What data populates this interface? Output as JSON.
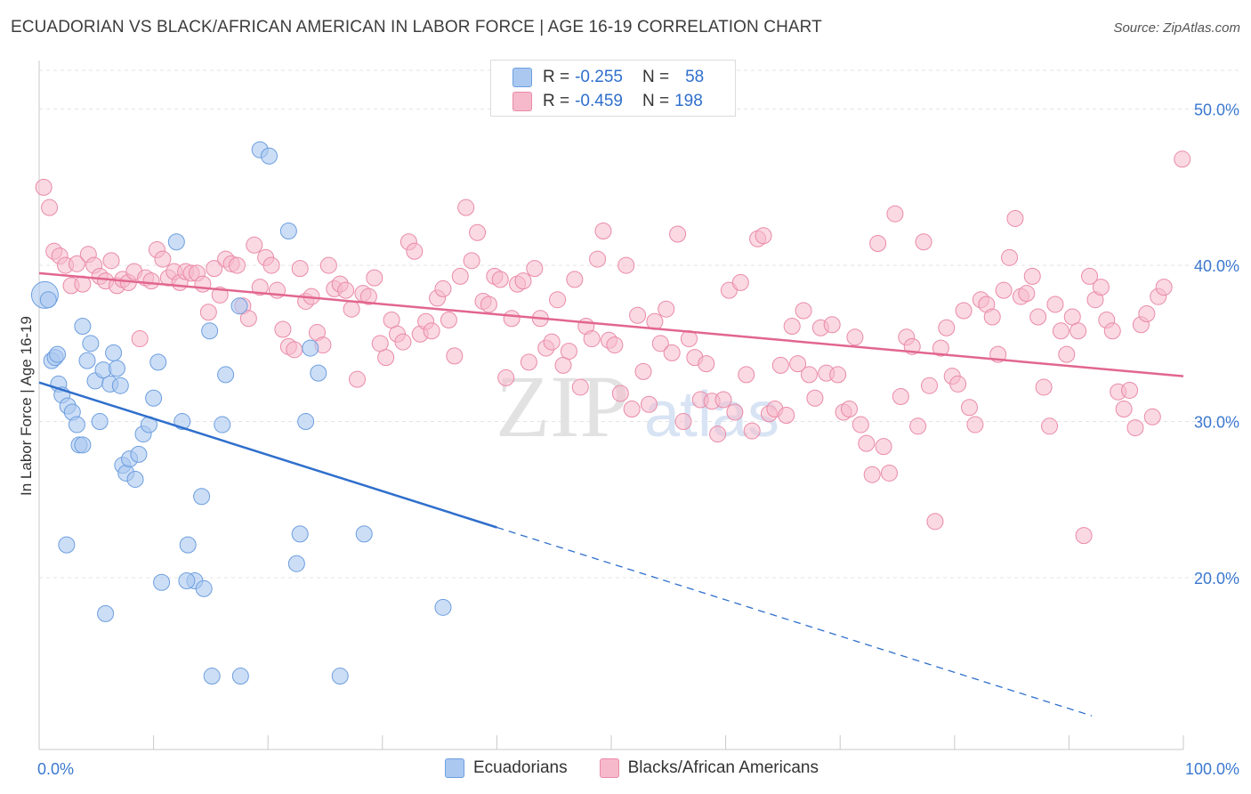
{
  "title": "ECUADORIAN VS BLACK/AFRICAN AMERICAN IN LABOR FORCE | AGE 16-19 CORRELATION CHART",
  "source": "Source: ZipAtlas.com",
  "watermark": {
    "zip": "ZIP",
    "atlas": "atlas"
  },
  "legend": {
    "ecuadorians": {
      "r_label": "R =",
      "r_value": "-0.255",
      "n_label": "N =",
      "n_value": "58"
    },
    "blacks": {
      "r_label": "R =",
      "r_value": "-0.459",
      "n_label": "N =",
      "n_value": "198"
    }
  },
  "bottom_legend": {
    "ecuadorians": "Ecuadorians",
    "blacks": "Blacks/African Americans"
  },
  "colors": {
    "blue_fill": "#aac8f0",
    "blue_stroke": "#6c9edf",
    "blue_line": "#2f6fcc",
    "pink_fill": "#f6b9cc",
    "pink_stroke": "#ea8aa8",
    "pink_line": "#e2668f",
    "tick_label": "#3b78cf",
    "grid": "#e3e3e3"
  },
  "chart_data": {
    "type": "scatter",
    "title": "ECUADORIAN VS BLACK/AFRICAN AMERICAN IN LABOR FORCE | AGE 16-19 CORRELATION CHART",
    "xlabel": "",
    "ylabel": "In Labor Force | Age 16-19",
    "xlim": [
      0,
      100
    ],
    "ylim": [
      9,
      53
    ],
    "x_tick_labels": [
      "0.0%",
      "100.0%"
    ],
    "y_ticks": [
      20,
      30,
      40,
      50
    ],
    "y_tick_labels": [
      "20.0%",
      "30.0%",
      "40.0%",
      "50.0%"
    ],
    "grid": true,
    "series": [
      {
        "name": "Ecuadorians",
        "color": "blue",
        "regression": {
          "x0": 0,
          "y0": 32.5,
          "x1": 100,
          "y1": 9.3,
          "solid_until_x": 40
        },
        "points": [
          [
            0.5,
            38.1
          ],
          [
            0.8,
            37.8
          ],
          [
            1.1,
            33.9
          ],
          [
            1.4,
            34.1
          ],
          [
            1.6,
            34.3
          ],
          [
            1.7,
            32.4
          ],
          [
            2.0,
            31.7
          ],
          [
            2.5,
            31.0
          ],
          [
            2.9,
            30.6
          ],
          [
            3.3,
            29.8
          ],
          [
            3.5,
            28.5
          ],
          [
            3.8,
            28.5
          ],
          [
            2.4,
            22.1
          ],
          [
            3.8,
            36.1
          ],
          [
            4.2,
            33.9
          ],
          [
            4.5,
            35.0
          ],
          [
            4.9,
            32.6
          ],
          [
            5.3,
            30.0
          ],
          [
            5.6,
            33.3
          ],
          [
            6.2,
            32.4
          ],
          [
            6.5,
            34.4
          ],
          [
            6.8,
            33.4
          ],
          [
            7.1,
            32.3
          ],
          [
            7.3,
            27.2
          ],
          [
            7.6,
            26.7
          ],
          [
            7.9,
            27.6
          ],
          [
            8.4,
            26.3
          ],
          [
            8.7,
            27.9
          ],
          [
            9.1,
            29.2
          ],
          [
            9.6,
            29.8
          ],
          [
            10.0,
            31.5
          ],
          [
            10.4,
            33.8
          ],
          [
            12.0,
            41.5
          ],
          [
            12.5,
            30.0
          ],
          [
            13.0,
            22.1
          ],
          [
            14.2,
            25.2
          ],
          [
            13.6,
            19.8
          ],
          [
            15.1,
            13.7
          ],
          [
            14.9,
            35.8
          ],
          [
            16.0,
            29.8
          ],
          [
            16.3,
            33.0
          ],
          [
            17.5,
            37.4
          ],
          [
            19.3,
            47.4
          ],
          [
            20.1,
            47.0
          ],
          [
            21.8,
            42.2
          ],
          [
            22.5,
            20.9
          ],
          [
            22.8,
            22.8
          ],
          [
            23.3,
            30.0
          ],
          [
            23.7,
            34.7
          ],
          [
            24.4,
            33.1
          ],
          [
            28.4,
            22.8
          ],
          [
            5.8,
            17.7
          ],
          [
            10.7,
            19.7
          ],
          [
            12.9,
            19.8
          ],
          [
            14.4,
            19.3
          ],
          [
            17.6,
            13.7
          ],
          [
            26.3,
            13.7
          ],
          [
            35.3,
            18.1
          ]
        ]
      },
      {
        "name": "Blacks/African Americans",
        "color": "pink",
        "regression": {
          "x0": 0,
          "y0": 39.5,
          "x1": 100,
          "y1": 32.9
        },
        "points": [
          [
            0.4,
            45.0
          ],
          [
            0.9,
            43.7
          ],
          [
            1.3,
            40.9
          ],
          [
            1.8,
            40.6
          ],
          [
            2.3,
            40.0
          ],
          [
            2.8,
            38.7
          ],
          [
            3.3,
            40.1
          ],
          [
            3.8,
            38.8
          ],
          [
            4.3,
            40.7
          ],
          [
            4.8,
            40.0
          ],
          [
            5.3,
            39.3
          ],
          [
            5.8,
            39.0
          ],
          [
            6.3,
            40.3
          ],
          [
            6.8,
            38.7
          ],
          [
            7.3,
            39.1
          ],
          [
            7.8,
            38.9
          ],
          [
            8.3,
            39.6
          ],
          [
            8.8,
            35.3
          ],
          [
            9.3,
            39.2
          ],
          [
            9.8,
            39.0
          ],
          [
            10.3,
            41.0
          ],
          [
            10.8,
            40.4
          ],
          [
            11.3,
            39.2
          ],
          [
            11.8,
            39.6
          ],
          [
            12.3,
            38.9
          ],
          [
            12.8,
            39.6
          ],
          [
            13.3,
            39.5
          ],
          [
            13.8,
            39.5
          ],
          [
            14.3,
            38.8
          ],
          [
            14.8,
            37.0
          ],
          [
            15.3,
            39.8
          ],
          [
            15.8,
            38.1
          ],
          [
            16.3,
            40.4
          ],
          [
            16.8,
            40.1
          ],
          [
            17.3,
            40.0
          ],
          [
            17.8,
            37.4
          ],
          [
            18.3,
            36.6
          ],
          [
            18.8,
            41.3
          ],
          [
            19.3,
            38.6
          ],
          [
            19.8,
            40.5
          ],
          [
            20.3,
            40.0
          ],
          [
            20.8,
            38.4
          ],
          [
            21.3,
            35.9
          ],
          [
            21.8,
            34.8
          ],
          [
            22.3,
            34.6
          ],
          [
            22.8,
            39.8
          ],
          [
            23.3,
            37.7
          ],
          [
            23.8,
            38.0
          ],
          [
            24.3,
            35.7
          ],
          [
            24.8,
            34.9
          ],
          [
            25.3,
            40.0
          ],
          [
            25.8,
            38.5
          ],
          [
            26.3,
            38.8
          ],
          [
            26.8,
            38.4
          ],
          [
            27.3,
            37.2
          ],
          [
            27.8,
            32.7
          ],
          [
            28.3,
            38.2
          ],
          [
            28.8,
            38.0
          ],
          [
            29.3,
            39.2
          ],
          [
            29.8,
            35.0
          ],
          [
            30.3,
            34.1
          ],
          [
            30.8,
            36.5
          ],
          [
            31.3,
            35.6
          ],
          [
            31.8,
            35.1
          ],
          [
            32.3,
            41.5
          ],
          [
            32.8,
            40.9
          ],
          [
            33.3,
            35.6
          ],
          [
            33.8,
            36.4
          ],
          [
            34.3,
            35.8
          ],
          [
            34.8,
            37.9
          ],
          [
            35.3,
            38.5
          ],
          [
            35.8,
            36.5
          ],
          [
            36.3,
            34.2
          ],
          [
            36.8,
            39.3
          ],
          [
            37.3,
            43.7
          ],
          [
            37.8,
            40.3
          ],
          [
            38.3,
            42.1
          ],
          [
            38.8,
            37.7
          ],
          [
            39.3,
            37.5
          ],
          [
            39.8,
            39.3
          ],
          [
            40.3,
            39.1
          ],
          [
            40.8,
            32.8
          ],
          [
            41.3,
            36.6
          ],
          [
            41.8,
            38.8
          ],
          [
            42.3,
            39.0
          ],
          [
            42.8,
            33.8
          ],
          [
            43.3,
            39.8
          ],
          [
            43.8,
            36.6
          ],
          [
            44.3,
            34.7
          ],
          [
            44.8,
            35.1
          ],
          [
            45.3,
            37.8
          ],
          [
            45.8,
            33.6
          ],
          [
            46.3,
            34.5
          ],
          [
            46.8,
            39.1
          ],
          [
            47.3,
            32.2
          ],
          [
            47.8,
            36.1
          ],
          [
            48.3,
            35.3
          ],
          [
            48.8,
            40.4
          ],
          [
            49.3,
            42.2
          ],
          [
            49.8,
            35.2
          ],
          [
            50.3,
            34.9
          ],
          [
            50.8,
            31.8
          ],
          [
            51.3,
            40.0
          ],
          [
            51.8,
            30.8
          ],
          [
            52.3,
            36.8
          ],
          [
            52.8,
            33.2
          ],
          [
            53.3,
            31.1
          ],
          [
            53.8,
            36.4
          ],
          [
            54.3,
            35.0
          ],
          [
            54.8,
            37.2
          ],
          [
            55.3,
            34.4
          ],
          [
            55.8,
            42.0
          ],
          [
            56.3,
            30.0
          ],
          [
            56.8,
            35.3
          ],
          [
            57.3,
            34.1
          ],
          [
            57.8,
            31.4
          ],
          [
            58.3,
            33.7
          ],
          [
            58.8,
            31.3
          ],
          [
            59.3,
            29.2
          ],
          [
            59.8,
            31.4
          ],
          [
            60.3,
            38.4
          ],
          [
            60.8,
            30.6
          ],
          [
            61.3,
            38.9
          ],
          [
            61.8,
            33.0
          ],
          [
            62.3,
            29.4
          ],
          [
            62.8,
            41.7
          ],
          [
            63.3,
            41.9
          ],
          [
            63.8,
            30.5
          ],
          [
            64.3,
            30.8
          ],
          [
            64.8,
            33.6
          ],
          [
            65.3,
            30.4
          ],
          [
            65.8,
            36.1
          ],
          [
            66.3,
            33.7
          ],
          [
            66.8,
            37.1
          ],
          [
            67.3,
            33.0
          ],
          [
            67.8,
            31.5
          ],
          [
            68.3,
            36.0
          ],
          [
            68.8,
            33.1
          ],
          [
            69.3,
            36.2
          ],
          [
            69.8,
            33.0
          ],
          [
            70.3,
            30.6
          ],
          [
            70.8,
            30.8
          ],
          [
            71.3,
            35.4
          ],
          [
            71.8,
            29.8
          ],
          [
            72.3,
            28.6
          ],
          [
            72.8,
            26.6
          ],
          [
            73.3,
            41.4
          ],
          [
            73.8,
            28.4
          ],
          [
            74.3,
            26.7
          ],
          [
            74.8,
            43.3
          ],
          [
            75.3,
            31.6
          ],
          [
            75.8,
            35.4
          ],
          [
            76.3,
            34.8
          ],
          [
            76.8,
            29.7
          ],
          [
            77.3,
            41.5
          ],
          [
            77.8,
            32.3
          ],
          [
            78.3,
            23.6
          ],
          [
            78.8,
            34.7
          ],
          [
            79.3,
            36.0
          ],
          [
            79.8,
            32.9
          ],
          [
            80.3,
            32.4
          ],
          [
            80.8,
            37.1
          ],
          [
            81.3,
            30.9
          ],
          [
            81.8,
            29.8
          ],
          [
            82.3,
            37.8
          ],
          [
            82.8,
            37.5
          ],
          [
            83.3,
            36.7
          ],
          [
            83.8,
            34.3
          ],
          [
            84.3,
            38.4
          ],
          [
            84.8,
            40.5
          ],
          [
            85.3,
            43.0
          ],
          [
            85.8,
            38.0
          ],
          [
            86.3,
            38.2
          ],
          [
            86.8,
            39.3
          ],
          [
            87.3,
            36.7
          ],
          [
            87.8,
            32.2
          ],
          [
            88.3,
            29.7
          ],
          [
            88.8,
            37.5
          ],
          [
            89.3,
            35.8
          ],
          [
            89.8,
            34.3
          ],
          [
            90.3,
            36.7
          ],
          [
            90.8,
            35.8
          ],
          [
            91.3,
            22.7
          ],
          [
            91.8,
            39.3
          ],
          [
            92.3,
            37.8
          ],
          [
            92.8,
            38.6
          ],
          [
            93.3,
            36.5
          ],
          [
            93.8,
            35.8
          ],
          [
            94.3,
            31.9
          ],
          [
            94.8,
            30.8
          ],
          [
            95.3,
            32.0
          ],
          [
            95.8,
            29.6
          ],
          [
            96.3,
            36.2
          ],
          [
            96.8,
            36.9
          ],
          [
            97.3,
            30.3
          ],
          [
            97.8,
            38.0
          ],
          [
            98.3,
            38.6
          ],
          [
            99.9,
            46.8
          ]
        ]
      }
    ]
  }
}
